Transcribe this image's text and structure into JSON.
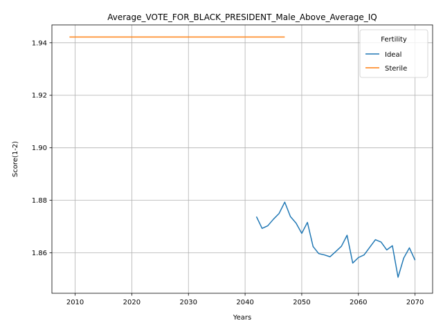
{
  "chart_data": {
    "type": "line",
    "title": "Average_VOTE_FOR_BLACK_PRESIDENT_Male_Above_Average_IQ",
    "xlabel": "Years",
    "ylabel": "Score(1-2)",
    "xlim": [
      2005.9,
      2073.1
    ],
    "ylim": [
      1.8446,
      1.9468
    ],
    "xticks": [
      2010,
      2020,
      2030,
      2040,
      2050,
      2060,
      2070
    ],
    "yticks": [
      1.86,
      1.88,
      1.9,
      1.92,
      1.94
    ],
    "ytick_labels": [
      "1.86",
      "1.88",
      "1.90",
      "1.92",
      "1.94"
    ],
    "grid": true,
    "legend": {
      "title": "Fertility",
      "position": "top-right"
    },
    "series": [
      {
        "name": "Ideal",
        "color": "#1f77b4",
        "x": [
          2042,
          2043,
          2044,
          2045,
          2046,
          2047,
          2048,
          2049,
          2050,
          2051,
          2052,
          2053,
          2054,
          2055,
          2056,
          2057,
          2058,
          2059,
          2060,
          2061,
          2062,
          2063,
          2064,
          2065,
          2066,
          2067,
          2068,
          2069,
          2070
        ],
        "y": [
          1.8738,
          1.8693,
          1.8703,
          1.8728,
          1.875,
          1.8793,
          1.8738,
          1.8713,
          1.8674,
          1.8716,
          1.8624,
          1.8597,
          1.8592,
          1.8585,
          1.8605,
          1.8625,
          1.8667,
          1.8561,
          1.8582,
          1.8592,
          1.8621,
          1.865,
          1.8641,
          1.8611,
          1.8627,
          1.8507,
          1.858,
          1.8619,
          1.8572
        ]
      },
      {
        "name": "Sterile",
        "color": "#ff7f0e",
        "x": [
          2009,
          2047
        ],
        "y": [
          1.9422,
          1.9422
        ]
      }
    ]
  }
}
